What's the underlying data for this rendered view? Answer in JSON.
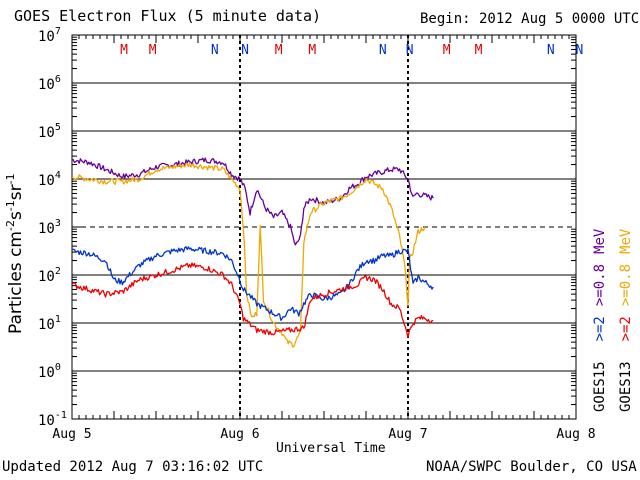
{
  "header": {
    "title": "GOES Electron Flux (5 minute data)",
    "begin": "Begin: 2012 Aug 5 0000 UTC"
  },
  "footer": {
    "updated": "Updated 2012 Aug  7 03:16:02 UTC",
    "credit": "NOAA/SWPC Boulder, CO USA"
  },
  "colors": {
    "goes15_2mev": "#0033cc",
    "goes13_2mev": "#ee0000",
    "goes15_08mev": "#660099",
    "goes13_08mev": "#f0a800",
    "m_marker": "#dd0000",
    "n_marker": "#0033cc"
  },
  "chart_data": {
    "type": "line",
    "title": "GOES Electron Flux (5 minute data)",
    "xlabel": "Universal Time",
    "ylabel": "Particles cm⁻²s⁻¹sr⁻¹",
    "ylabel_parts": [
      "Particles cm",
      "-2",
      "s",
      "-1",
      "sr",
      "-1"
    ],
    "x_unit": "days since 2012 Aug 5 0000 UTC",
    "xlim": [
      0,
      3
    ],
    "ylim_log10": [
      -1,
      7
    ],
    "y_scale": "log",
    "x_ticks": [
      {
        "value": 0,
        "label": "Aug 5"
      },
      {
        "value": 1,
        "label": "Aug 6"
      },
      {
        "value": 2,
        "label": "Aug 7"
      },
      {
        "value": 3,
        "label": "Aug 8"
      }
    ],
    "y_ticks": [
      {
        "exp": 7,
        "base": "10",
        "sup": "7"
      },
      {
        "exp": 6,
        "base": "10",
        "sup": "6"
      },
      {
        "exp": 5,
        "base": "10",
        "sup": "5"
      },
      {
        "exp": 4,
        "base": "10",
        "sup": "4"
      },
      {
        "exp": 3,
        "base": "10",
        "sup": "3"
      },
      {
        "exp": 2,
        "base": "10",
        "sup": "2"
      },
      {
        "exp": 1,
        "base": "10",
        "sup": "1"
      },
      {
        "exp": 0,
        "base": "10",
        "sup": "0"
      },
      {
        "exp": -1,
        "base": "10",
        "sup": "-1"
      }
    ],
    "threshold_line_exp": 3,
    "day_dividers": [
      1,
      2
    ],
    "markers": [
      {
        "x": 0.31,
        "label": "M",
        "type": "M"
      },
      {
        "x": 0.48,
        "label": "M",
        "type": "M"
      },
      {
        "x": 0.85,
        "label": "N",
        "type": "N"
      },
      {
        "x": 1.03,
        "label": "N",
        "type": "N"
      },
      {
        "x": 1.23,
        "label": "M",
        "type": "M"
      },
      {
        "x": 1.43,
        "label": "M",
        "type": "M"
      },
      {
        "x": 1.85,
        "label": "N",
        "type": "N"
      },
      {
        "x": 2.01,
        "label": "N",
        "type": "N"
      },
      {
        "x": 2.23,
        "label": "M",
        "type": "M"
      },
      {
        "x": 2.42,
        "label": "M",
        "type": "M"
      },
      {
        "x": 2.85,
        "label": "N",
        "type": "N"
      },
      {
        "x": 3.02,
        "label": "N",
        "type": "N"
      }
    ],
    "legend": {
      "position": "right",
      "columns": [
        {
          "satellite": "GOES15",
          "items": [
            {
              "label": ">=2",
              "series": "goes15_2mev"
            },
            {
              "label": ">=0.8",
              "series": "goes15_08mev"
            }
          ]
        },
        {
          "satellite": "GOES13",
          "items": [
            {
              "label": ">=2",
              "series": "goes13_2mev"
            },
            {
              "label": ">=0.8",
              "series": "goes13_08mev"
            }
          ]
        }
      ],
      "unit": "MeV"
    },
    "series": [
      {
        "name": "GOES15 >=0.8 MeV",
        "key": "goes15_08mev",
        "x": [
          0,
          0.1,
          0.2,
          0.3,
          0.4,
          0.5,
          0.6,
          0.7,
          0.8,
          0.9,
          0.95,
          1.0,
          1.03,
          1.06,
          1.1,
          1.15,
          1.2,
          1.25,
          1.3,
          1.33,
          1.36,
          1.38,
          1.42,
          1.5,
          1.6,
          1.65,
          1.7,
          1.75,
          1.8,
          1.85,
          1.9,
          1.95,
          2.0,
          2.03,
          2.05,
          2.1,
          2.15
        ],
        "y_log10": [
          4.4,
          4.35,
          4.2,
          4.05,
          4.1,
          4.25,
          4.3,
          4.35,
          4.4,
          4.35,
          4.1,
          4.0,
          3.8,
          3.3,
          3.8,
          3.4,
          3.2,
          3.3,
          3.0,
          2.6,
          2.8,
          3.4,
          3.6,
          3.5,
          3.6,
          3.8,
          3.9,
          4.05,
          4.1,
          4.15,
          4.2,
          4.2,
          4.0,
          3.6,
          3.7,
          3.65,
          3.6
        ]
      },
      {
        "name": "GOES13 >=0.8 MeV",
        "key": "goes13_08mev",
        "x": [
          0,
          0.1,
          0.2,
          0.3,
          0.4,
          0.5,
          0.6,
          0.7,
          0.8,
          0.9,
          0.95,
          1.0,
          1.02,
          1.04,
          1.07,
          1.1,
          1.12,
          1.14,
          1.2,
          1.25,
          1.28,
          1.32,
          1.36,
          1.38,
          1.42,
          1.5,
          1.6,
          1.65,
          1.7,
          1.75,
          1.8,
          1.85,
          1.9,
          1.95,
          1.98,
          2.0,
          2.01,
          2.03,
          2.06,
          2.1
        ],
        "y_log10": [
          4.05,
          4.0,
          3.95,
          3.95,
          4.0,
          4.2,
          4.25,
          4.3,
          4.25,
          4.2,
          4.0,
          3.8,
          3.0,
          1.6,
          1.1,
          1.2,
          3.0,
          1.5,
          1.0,
          0.8,
          0.6,
          0.55,
          0.8,
          2.7,
          3.3,
          3.5,
          3.6,
          3.7,
          3.85,
          4.0,
          3.9,
          3.8,
          3.4,
          2.8,
          2.2,
          1.4,
          2.3,
          2.5,
          2.9,
          3.0
        ]
      },
      {
        "name": "GOES15 >=2 MeV",
        "key": "goes15_2mev",
        "x": [
          0,
          0.1,
          0.2,
          0.25,
          0.3,
          0.4,
          0.5,
          0.6,
          0.7,
          0.8,
          0.9,
          0.95,
          1.0,
          1.02,
          1.05,
          1.1,
          1.15,
          1.2,
          1.25,
          1.3,
          1.35,
          1.38,
          1.42,
          1.5,
          1.6,
          1.65,
          1.7,
          1.75,
          1.8,
          1.85,
          1.9,
          1.95,
          2.0,
          2.03,
          2.06,
          2.1,
          2.15
        ],
        "y_log10": [
          2.5,
          2.45,
          2.3,
          1.9,
          1.85,
          2.2,
          2.4,
          2.5,
          2.55,
          2.5,
          2.45,
          2.3,
          1.9,
          1.7,
          1.6,
          1.4,
          1.3,
          1.2,
          1.1,
          1.3,
          1.2,
          1.4,
          1.6,
          1.5,
          1.6,
          1.8,
          2.1,
          2.3,
          2.3,
          2.4,
          2.4,
          2.5,
          2.5,
          1.8,
          1.95,
          1.85,
          1.75
        ]
      },
      {
        "name": "GOES13 >=2 MeV",
        "key": "goes13_2mev",
        "x": [
          0,
          0.1,
          0.2,
          0.3,
          0.4,
          0.5,
          0.6,
          0.7,
          0.8,
          0.9,
          0.95,
          1.0,
          1.02,
          1.05,
          1.1,
          1.2,
          1.3,
          1.38,
          1.42,
          1.5,
          1.6,
          1.65,
          1.7,
          1.75,
          1.8,
          1.85,
          1.9,
          1.95,
          2.0,
          2.03,
          2.06,
          2.1,
          2.15
        ],
        "y_log10": [
          1.8,
          1.7,
          1.6,
          1.65,
          1.9,
          2.0,
          2.1,
          2.2,
          2.15,
          2.0,
          1.8,
          1.4,
          1.1,
          1.0,
          0.85,
          0.8,
          0.85,
          0.9,
          1.5,
          1.6,
          1.7,
          1.75,
          1.8,
          1.95,
          1.9,
          1.7,
          1.4,
          1.3,
          0.75,
          1.0,
          1.1,
          1.1,
          1.05
        ]
      }
    ]
  }
}
